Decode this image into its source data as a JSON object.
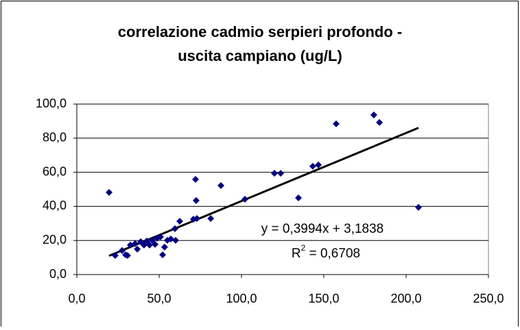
{
  "chart_data": {
    "type": "scatter",
    "title": [
      "correlazione cadmio serpieri profondo -",
      "uscita campiano (ug/L)"
    ],
    "color": "#000080",
    "x": [
      19.6,
      23.3,
      27.5,
      29.6,
      30.8,
      32.5,
      35.4,
      36.7,
      38.8,
      40.8,
      42.5,
      44.2,
      45.8,
      47.5,
      48.8,
      50.8,
      52.1,
      53.3,
      55.0,
      57.1,
      59.6,
      60.0,
      62.5,
      70.8,
      72.1,
      72.5,
      72.9,
      81.3,
      87.5,
      102.1,
      120.0,
      123.8,
      134.6,
      143.3,
      146.7,
      157.5,
      180.4,
      183.8,
      207.5
    ],
    "values": [
      48.2,
      11.2,
      14.1,
      11.6,
      11.2,
      17.3,
      18.1,
      14.9,
      19.3,
      17.3,
      19.7,
      17.3,
      20.1,
      17.7,
      21.3,
      22.1,
      11.6,
      16.1,
      20.1,
      20.9,
      26.9,
      20.1,
      31.3,
      32.5,
      55.8,
      43.4,
      32.9,
      32.9,
      52.2,
      44.2,
      59.4,
      59.4,
      45.0,
      63.5,
      64.3,
      88.4,
      93.6,
      89.2,
      39.4
    ],
    "xlim": [
      0,
      250
    ],
    "xticks": [
      {
        "value": 0,
        "label": "0,0"
      },
      {
        "value": 50,
        "label": "50,0"
      },
      {
        "value": 100,
        "label": "100,0"
      },
      {
        "value": 150,
        "label": "150,0"
      },
      {
        "value": 200,
        "label": "200,0"
      },
      {
        "value": 250,
        "label": "250,0"
      }
    ],
    "ylim": [
      0,
      100
    ],
    "yticks": [
      {
        "value": 0,
        "label": "0,0"
      },
      {
        "value": 20,
        "label": "20,0"
      },
      {
        "value": 40,
        "label": "40,0"
      },
      {
        "value": 60,
        "label": "60,0"
      },
      {
        "value": 80,
        "label": "80,0"
      },
      {
        "value": 100,
        "label": "100,0"
      }
    ],
    "grid": true,
    "trendline": {
      "slope": 0.3994,
      "intercept": 3.1838,
      "color": "#000000",
      "equation": "y = 0,3994x + 3,1838",
      "r_squared": {
        "value": 0.6708,
        "parts": [
          "R",
          "2",
          " = 0,6708"
        ]
      }
    }
  }
}
